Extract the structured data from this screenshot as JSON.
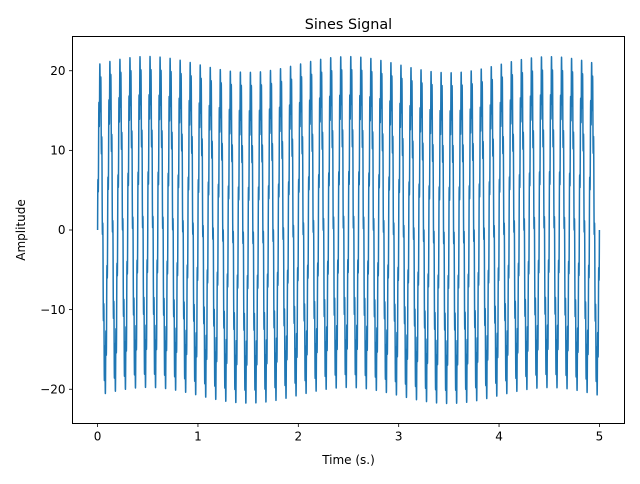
{
  "chart_data": {
    "type": "line",
    "title": "Sines Signal",
    "xlabel": "Time (s.)",
    "ylabel": "Amplitude",
    "xlim": [
      -0.25,
      5.25
    ],
    "ylim": [
      -24.3,
      24.3
    ],
    "grid": false,
    "x_ticks": [
      0,
      1,
      2,
      3,
      4,
      5
    ],
    "x_tick_labels": [
      "0",
      "1",
      "2",
      "3",
      "4",
      "5"
    ],
    "y_ticks": [
      -20,
      -10,
      0,
      10,
      20
    ],
    "y_tick_labels": [
      "−20",
      "−10",
      "0",
      "10",
      "20"
    ],
    "series": [
      {
        "x_range": [
          0,
          5
        ],
        "samples": 8000,
        "components": [
          {
            "frequency_hz": 10,
            "amplitude": 18
          },
          {
            "frequency_hz": 100,
            "amplitude": 3
          },
          {
            "frequency_hz": 0.5,
            "amplitude": 1
          }
        ],
        "color": "#1f77b4"
      }
    ]
  }
}
